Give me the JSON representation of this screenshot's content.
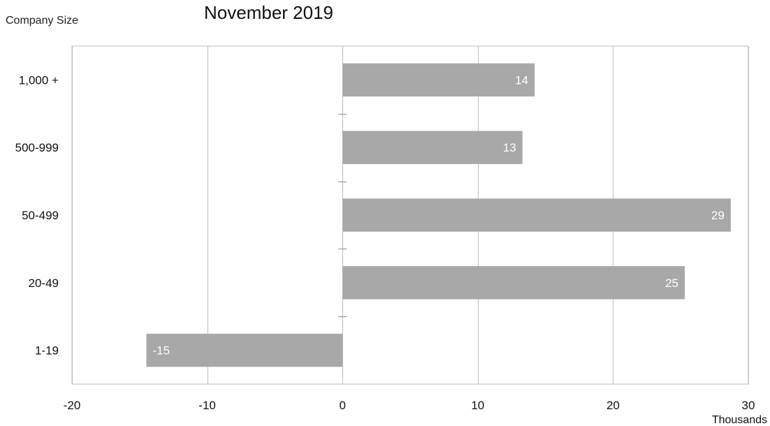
{
  "chart_data": {
    "type": "bar",
    "orientation": "horizontal",
    "title": "November 2019",
    "ylabel": "Company Size",
    "xlabel": "",
    "x_unit_label": "Thousands",
    "categories": [
      "1,000 +",
      "500-999",
      "50-499",
      "20-49",
      "1-19"
    ],
    "values": [
      14.2,
      13.3,
      28.7,
      25.3,
      -14.5
    ],
    "data_labels": [
      "14",
      "13",
      "29",
      "25",
      "-15"
    ],
    "xlim": [
      -20,
      30
    ],
    "xticks": [
      -20,
      -10,
      0,
      10,
      20,
      30
    ],
    "xtick_labels": [
      "-20",
      "-10",
      "0",
      "10",
      "20",
      "30"
    ],
    "grid": "vertical",
    "legend": "none",
    "colors": {
      "bar": "#a8a8a8",
      "grid": "#bdbdbd",
      "frame": "#bdbdbd",
      "data_label": "#ffffff"
    }
  }
}
